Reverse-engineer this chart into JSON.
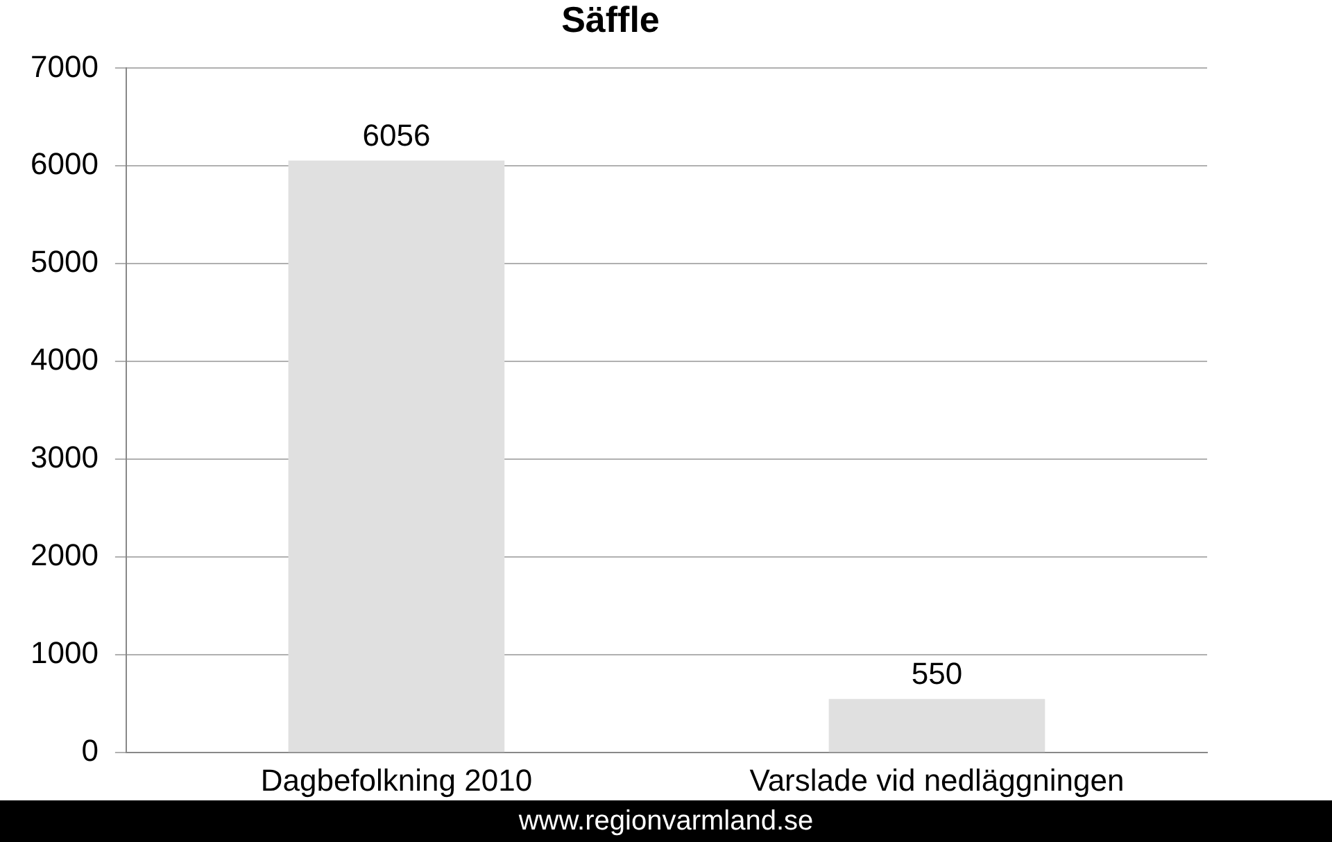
{
  "chart_data": {
    "type": "bar",
    "title": "Säffle",
    "categories": [
      "Dagbefolkning 2010",
      "Varslade vid nedläggningen"
    ],
    "values": [
      6056,
      550
    ],
    "color": "#e0e0e0",
    "ylim": [
      0,
      7000
    ],
    "yticks": [
      0,
      1000,
      2000,
      3000,
      4000,
      5000,
      6000,
      7000
    ],
    "grid": "y",
    "data_labels": true,
    "legend": false,
    "annotations": [
      "www.regionvarmland.se"
    ]
  }
}
